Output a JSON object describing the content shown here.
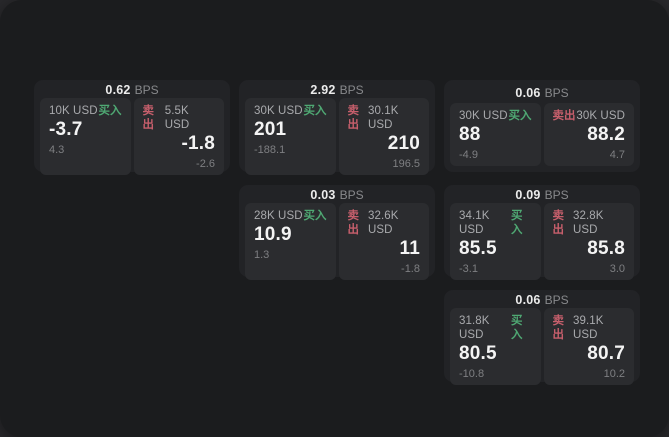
{
  "labels": {
    "bps_suffix": "BPS",
    "buy": "买入",
    "sell": "卖出"
  },
  "colors": {
    "buy": "#4fa873",
    "sell": "#c75f6c",
    "window_bg": "#1b1c1e",
    "card_bg": "#222326",
    "panel_bg": "#2b2c2f"
  },
  "columns": [
    [
      0
    ],
    [
      1,
      3
    ],
    [
      2,
      4,
      5
    ]
  ],
  "cards": [
    {
      "bps": "0.62",
      "buy_amount": "10K USD",
      "buy_value": "-3.7",
      "buy_delta": "4.3",
      "sell_amount": "5.5K USD",
      "sell_value": "-1.8",
      "sell_delta": "-2.6"
    },
    {
      "bps": "2.92",
      "buy_amount": "30K USD",
      "buy_value": "201",
      "buy_delta": "-188.1",
      "sell_amount": "30.1K USD",
      "sell_value": "210",
      "sell_delta": "196.5"
    },
    {
      "bps": "0.06",
      "buy_amount": "30K USD",
      "buy_value": "88",
      "buy_delta": "-4.9",
      "sell_amount": "30K USD",
      "sell_value": "88.2",
      "sell_delta": "4.7"
    },
    {
      "bps": "0.03",
      "buy_amount": "28K USD",
      "buy_value": "10.9",
      "buy_delta": "1.3",
      "sell_amount": "32.6K USD",
      "sell_value": "11",
      "sell_delta": "-1.8"
    },
    {
      "bps": "0.09",
      "buy_amount": "34.1K USD",
      "buy_value": "85.5",
      "buy_delta": "-3.1",
      "sell_amount": "32.8K USD",
      "sell_value": "85.8",
      "sell_delta": "3.0"
    },
    {
      "bps": "0.06",
      "buy_amount": "31.8K USD",
      "buy_value": "80.5",
      "buy_delta": "-10.8",
      "sell_amount": "39.1K USD",
      "sell_value": "80.7",
      "sell_delta": "10.2"
    }
  ]
}
